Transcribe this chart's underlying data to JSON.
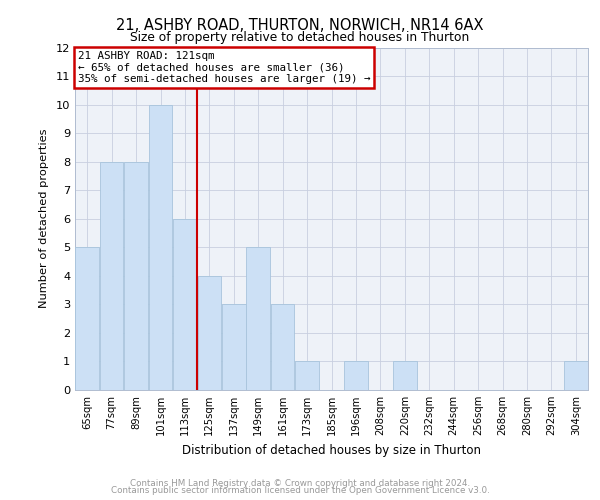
{
  "title1": "21, ASHBY ROAD, THURTON, NORWICH, NR14 6AX",
  "title2": "Size of property relative to detached houses in Thurton",
  "xlabel": "Distribution of detached houses by size in Thurton",
  "ylabel": "Number of detached properties",
  "categories": [
    "65sqm",
    "77sqm",
    "89sqm",
    "101sqm",
    "113sqm",
    "125sqm",
    "137sqm",
    "149sqm",
    "161sqm",
    "173sqm",
    "185sqm",
    "196sqm",
    "208sqm",
    "220sqm",
    "232sqm",
    "244sqm",
    "256sqm",
    "268sqm",
    "280sqm",
    "292sqm",
    "304sqm"
  ],
  "values": [
    5,
    8,
    8,
    10,
    6,
    4,
    3,
    5,
    3,
    1,
    0,
    1,
    0,
    1,
    0,
    0,
    0,
    0,
    0,
    0,
    1
  ],
  "bar_color": "#cce0f5",
  "bar_edge_color": "#a8c4dc",
  "highlight_line_color": "#cc0000",
  "annotation_line1": "21 ASHBY ROAD: 121sqm",
  "annotation_line2": "← 65% of detached houses are smaller (36)",
  "annotation_line3": "35% of semi-detached houses are larger (19) →",
  "annotation_box_color": "#cc0000",
  "ylim": [
    0,
    12
  ],
  "yticks": [
    0,
    1,
    2,
    3,
    4,
    5,
    6,
    7,
    8,
    9,
    10,
    11,
    12
  ],
  "footer1": "Contains HM Land Registry data © Crown copyright and database right 2024.",
  "footer2": "Contains public sector information licensed under the Open Government Licence v3.0.",
  "bg_color": "#eef2f8",
  "grid_color": "#c8cfe0"
}
